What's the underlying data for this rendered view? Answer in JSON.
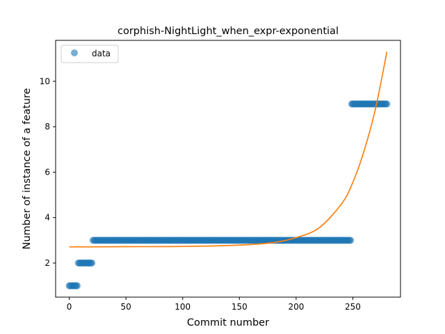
{
  "chart_data": {
    "type": "scatter",
    "title": "corphish-NightLight_when_expr-exponential",
    "xlabel": "Commit number",
    "ylabel": "Number of instance of a feature",
    "xlim": [
      -12,
      292
    ],
    "ylim": [
      0.5,
      11.8
    ],
    "xticks": [
      0,
      50,
      100,
      150,
      200,
      250
    ],
    "yticks": [
      2,
      4,
      6,
      8,
      10
    ],
    "grid": false,
    "legend": {
      "position": "top-left",
      "entries": [
        "data"
      ]
    },
    "colors": {
      "data": "#1f77b4",
      "fit": "#ff7f0e"
    },
    "series": [
      {
        "name": "data",
        "kind": "scatter",
        "segments": [
          {
            "x_start": 0,
            "x_end": 7,
            "y": 1
          },
          {
            "x_start": 8,
            "x_end": 20,
            "y": 2
          },
          {
            "x_start": 21,
            "x_end": 248,
            "y": 3
          },
          {
            "x_start": 249,
            "x_end": 280,
            "y": 9
          }
        ]
      },
      {
        "kind": "line",
        "x": [
          0,
          50,
          100,
          150,
          180,
          200,
          220,
          240,
          250,
          260,
          270,
          280
        ],
        "y": [
          2.71,
          2.72,
          2.73,
          2.79,
          2.9,
          3.12,
          3.54,
          4.6,
          5.55,
          6.95,
          8.8,
          11.3
        ]
      }
    ]
  }
}
